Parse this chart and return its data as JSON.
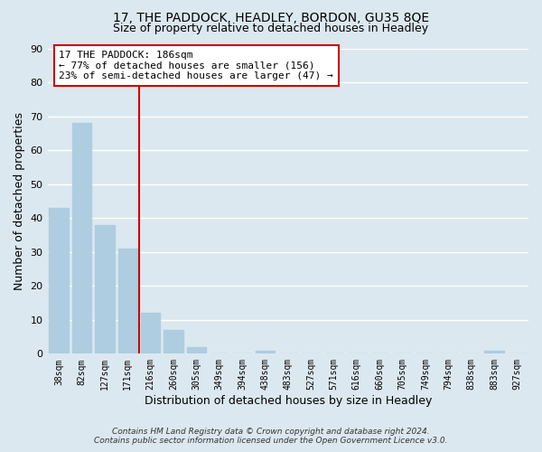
{
  "title": "17, THE PADDOCK, HEADLEY, BORDON, GU35 8QE",
  "subtitle": "Size of property relative to detached houses in Headley",
  "xlabel": "Distribution of detached houses by size in Headley",
  "ylabel": "Number of detached properties",
  "bar_labels": [
    "38sqm",
    "82sqm",
    "127sqm",
    "171sqm",
    "216sqm",
    "260sqm",
    "305sqm",
    "349sqm",
    "394sqm",
    "438sqm",
    "483sqm",
    "527sqm",
    "571sqm",
    "616sqm",
    "660sqm",
    "705sqm",
    "749sqm",
    "794sqm",
    "838sqm",
    "883sqm",
    "927sqm"
  ],
  "bar_values": [
    43,
    68,
    38,
    31,
    12,
    7,
    2,
    0,
    0,
    1,
    0,
    0,
    0,
    0,
    0,
    0,
    0,
    0,
    0,
    1,
    0
  ],
  "bar_color": "#aecde0",
  "property_line_x": 3.5,
  "annotation_title": "17 THE PADDOCK: 186sqm",
  "annotation_line1": "← 77% of detached houses are smaller (156)",
  "annotation_line2": "23% of semi-detached houses are larger (47) →",
  "annotation_box_color": "#ffffff",
  "annotation_box_edge": "#cc0000",
  "vline_color": "#cc0000",
  "ylim": [
    0,
    90
  ],
  "yticks": [
    0,
    10,
    20,
    30,
    40,
    50,
    60,
    70,
    80,
    90
  ],
  "footer1": "Contains HM Land Registry data © Crown copyright and database right 2024.",
  "footer2": "Contains public sector information licensed under the Open Government Licence v3.0.",
  "background_color": "#dce8f0",
  "plot_bg_color": "#dce8f0",
  "grid_color": "#ffffff",
  "title_fontsize": 10,
  "subtitle_fontsize": 9
}
